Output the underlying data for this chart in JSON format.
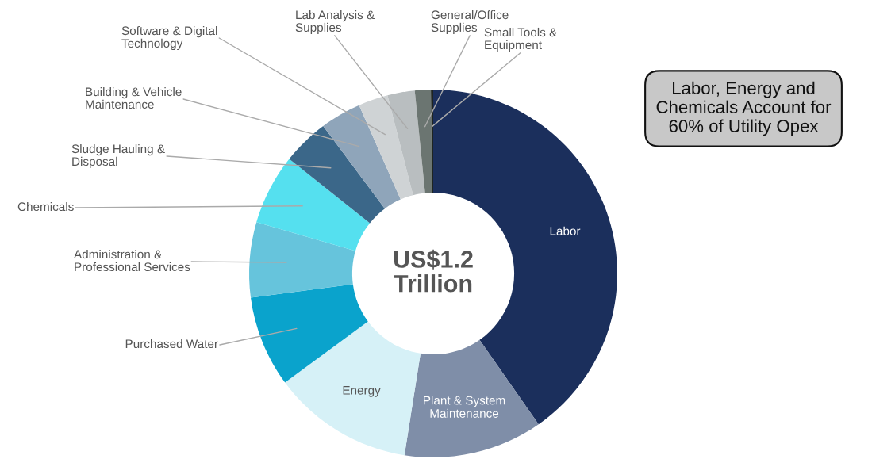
{
  "chart_data": {
    "type": "donut",
    "categories": [
      "Labor",
      "Plant & System\nMaintenance",
      "Energy",
      "Purchased Water",
      "Administration &\nProfessional Services",
      "Chemicals",
      "Sludge Hauling &\nDisposal",
      "Building & Vehicle\nMaintenance",
      "Software & Digital\nTechnology",
      "Lab Analysis &\nSupplies",
      "General/Office\nSupplies",
      "Small Tools &\nEquipment"
    ],
    "values": [
      40.3,
      12.2,
      12.4,
      8.0,
      6.6,
      6.2,
      4.1,
      3.6,
      2.6,
      2.4,
      1.4,
      0.2
    ],
    "colors": [
      "#1b2f5c",
      "#7f8ea8",
      "#d6f1f7",
      "#0aa3cc",
      "#66c4dc",
      "#55e0ef",
      "#3b6789",
      "#8fa5ba",
      "#cfd3d5",
      "#b9bec0",
      "#6b7571",
      "#1e2522"
    ],
    "annotations": [
      "US$1.2\nTrillion",
      "Labor, Energy and\nChemicals Account for\n60% of Utility Opex"
    ],
    "legend": false
  }
}
